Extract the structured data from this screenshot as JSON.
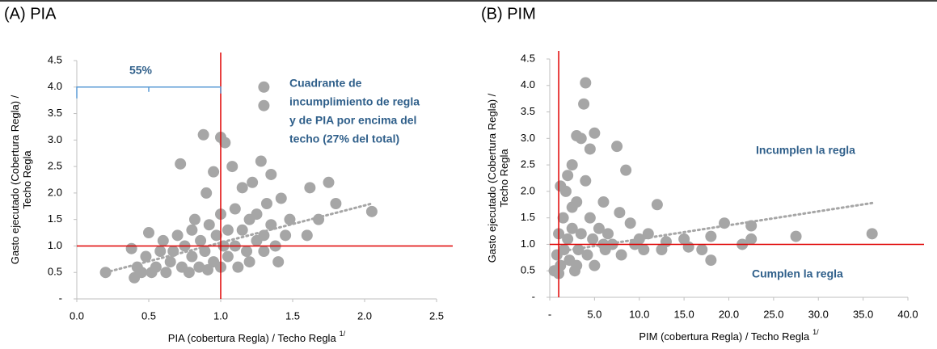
{
  "chart_data": [
    {
      "type": "scatter",
      "title": "(A) PIA",
      "y_label": [
        "Gasto ejecutado (Cobertura Regla) /",
        "Techo Regla"
      ],
      "x_label": "PIA (cobertura Regla) / Techo Regla",
      "x_label_sup": "1/",
      "color": "#a6a6a6",
      "x": [
        0.2,
        0.38,
        0.4,
        0.42,
        0.45,
        0.48,
        0.5,
        0.52,
        0.55,
        0.58,
        0.6,
        0.62,
        0.65,
        0.67,
        0.7,
        0.72,
        0.73,
        0.75,
        0.78,
        0.8,
        0.8,
        0.82,
        0.85,
        0.86,
        0.88,
        0.89,
        0.9,
        0.91,
        0.92,
        0.95,
        0.95,
        0.97,
        1.0,
        1.0,
        1.0,
        1.02,
        1.03,
        1.05,
        1.05,
        1.08,
        1.1,
        1.1,
        1.12,
        1.15,
        1.15,
        1.18,
        1.2,
        1.2,
        1.22,
        1.25,
        1.25,
        1.28,
        1.3,
        1.3,
        1.32,
        1.35,
        1.38,
        1.4,
        1.42,
        1.45,
        1.48,
        1.6,
        1.62,
        1.68,
        1.75,
        1.8,
        2.05,
        1.3,
        1.3,
        1.35
      ],
      "values": [
        0.5,
        0.95,
        0.4,
        0.6,
        0.5,
        0.8,
        1.25,
        0.5,
        0.6,
        0.9,
        1.1,
        0.5,
        0.7,
        0.9,
        1.2,
        2.55,
        0.6,
        1.0,
        0.5,
        1.3,
        0.8,
        1.5,
        0.6,
        1.1,
        3.1,
        0.9,
        2.0,
        0.55,
        1.4,
        0.7,
        2.4,
        1.2,
        3.05,
        0.6,
        1.6,
        1.0,
        2.95,
        0.8,
        1.3,
        2.5,
        1.0,
        1.7,
        0.6,
        1.3,
        2.1,
        0.9,
        1.5,
        0.7,
        2.2,
        1.1,
        1.6,
        2.6,
        1.2,
        0.9,
        1.8,
        1.4,
        1.0,
        0.7,
        1.9,
        1.2,
        1.5,
        1.2,
        2.1,
        1.5,
        2.2,
        1.8,
        1.65,
        4.0,
        3.65,
        2.35
      ],
      "xlim": [
        0,
        2.5
      ],
      "xticks": [
        {
          "value": 0,
          "label": "0.0"
        },
        0.5,
        {
          "value": 1,
          "label": "1.0"
        },
        1.5,
        {
          "value": 2,
          "label": "2.0"
        },
        2.5
      ],
      "ylim": [
        0,
        4.5
      ],
      "yticks": [
        {
          "value": 0,
          "label": "-"
        },
        0.5,
        {
          "value": 1,
          "label": "1.0"
        },
        1.5,
        {
          "value": 2,
          "label": "2.0"
        },
        2.5,
        {
          "value": 3,
          "label": "3.0"
        },
        3.5,
        {
          "value": 4,
          "label": "4.0"
        },
        4.5
      ],
      "hlines": [
        1
      ],
      "vlines": [
        1
      ],
      "trendline": {
        "x": [
          0.2,
          2.05
        ],
        "y": [
          0.5,
          1.8
        ]
      },
      "bracket": {
        "x": [
          0,
          1
        ],
        "y": 4,
        "label": "55%"
      },
      "annotations": [
        [
          "Cuadrante de",
          "incumplimiento de regla",
          "y de PIA por encima del",
          "techo  (27% del total)"
        ]
      ]
    },
    {
      "type": "scatter",
      "title": "(B) PIM",
      "y_label": [
        "Gasto ejecutado (Cobertura Regla) /",
        "Techo Regla"
      ],
      "x_label": "PIM (cobertura Regla) / Techo Regla",
      "x_label_sup": "1/",
      "color": "#a6a6a6",
      "x": [
        0.5,
        0.8,
        1.0,
        1.2,
        1.5,
        1.6,
        1.8,
        2.0,
        2.0,
        2.2,
        2.5,
        2.5,
        2.8,
        3.0,
        3.0,
        3.2,
        3.5,
        3.5,
        3.8,
        4.0,
        4.0,
        4.2,
        4.5,
        4.8,
        5.0,
        5.0,
        5.5,
        6.0,
        6.2,
        6.5,
        7.0,
        7.5,
        7.8,
        8.0,
        8.5,
        9.0,
        9.5,
        10.0,
        10.5,
        11.0,
        12.0,
        12.5,
        13.0,
        15.0,
        15.5,
        17.0,
        18.0,
        18.0,
        19.5,
        21.5,
        22.5,
        22.5,
        27.5,
        36.0,
        1.0,
        2.5,
        3.0,
        4.5,
        1.2,
        6.0
      ],
      "values": [
        0.5,
        0.8,
        1.2,
        0.6,
        1.5,
        0.9,
        2.0,
        1.1,
        2.3,
        0.7,
        2.5,
        1.3,
        0.5,
        3.05,
        1.8,
        0.9,
        3.0,
        1.2,
        3.65,
        4.05,
        2.2,
        0.8,
        1.5,
        1.1,
        3.1,
        0.6,
        1.3,
        1.8,
        0.9,
        1.2,
        1.0,
        2.85,
        1.6,
        0.8,
        2.4,
        1.4,
        1.0,
        1.1,
        0.9,
        1.2,
        1.75,
        0.9,
        1.05,
        1.1,
        0.95,
        0.9,
        1.15,
        0.7,
        1.4,
        1.0,
        1.35,
        1.1,
        1.15,
        1.2,
        0.45,
        1.7,
        0.6,
        2.8,
        2.1,
        1.0
      ],
      "xlim": [
        0,
        40
      ],
      "xticks": [
        {
          "value": 0,
          "label": "-"
        },
        {
          "value": 5,
          "label": "5.0"
        },
        {
          "value": 10,
          "label": "10.0"
        },
        {
          "value": 15,
          "label": "15.0"
        },
        {
          "value": 20,
          "label": "20.0"
        },
        {
          "value": 25,
          "label": "25.0"
        },
        {
          "value": 30,
          "label": "30.0"
        },
        {
          "value": 35,
          "label": "35.0"
        },
        {
          "value": 40,
          "label": "40.0"
        }
      ],
      "ylim": [
        0,
        4.5
      ],
      "yticks": [
        {
          "value": 0,
          "label": "-"
        },
        0.5,
        {
          "value": 1,
          "label": "1.0"
        },
        1.5,
        {
          "value": 2,
          "label": "2.0"
        },
        2.5,
        {
          "value": 3,
          "label": "3.0"
        },
        3.5,
        {
          "value": 4,
          "label": "4.0"
        },
        4.5
      ],
      "hlines": [
        1
      ],
      "vlines": [
        1
      ],
      "trendline": {
        "x": [
          0.5,
          36
        ],
        "y": [
          0.85,
          1.78
        ]
      },
      "annotations": [
        [
          "Incumplen la regla"
        ],
        [
          "Cumplen la regla"
        ]
      ]
    }
  ]
}
